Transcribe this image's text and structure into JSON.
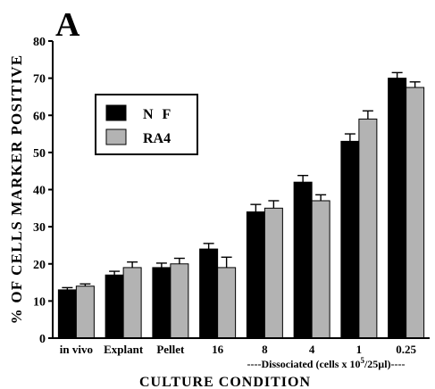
{
  "panel_label": "A",
  "chart_data": {
    "type": "bar",
    "title": "",
    "xlabel": "CULTURE CONDITION",
    "ylabel": "% OF CELLS MARKER POSITIVE",
    "ylim": [
      0,
      80
    ],
    "yticks": [
      0,
      10,
      20,
      30,
      40,
      50,
      60,
      70,
      80
    ],
    "categories": [
      "in vivo",
      "Explant",
      "Pellet",
      "16",
      "8",
      "4",
      "1",
      "0.25"
    ],
    "group_label": {
      "prefix": "----Dissociated  (cells  x  10",
      "superscript": "5",
      "suffix": "/25µl)----"
    },
    "series": [
      {
        "name": "N F",
        "color": "#000000",
        "values": [
          13,
          17,
          19,
          24,
          34,
          42,
          53,
          70
        ],
        "errors": [
          0.6,
          1.0,
          1.2,
          1.5,
          2.0,
          1.8,
          2.0,
          1.5
        ]
      },
      {
        "name": "RA4",
        "color": "#b3b3b3",
        "values": [
          14,
          19,
          20,
          19,
          35,
          37,
          59,
          67.5
        ],
        "errors": [
          0.6,
          1.5,
          1.5,
          2.8,
          2.0,
          1.6,
          2.2,
          1.5
        ]
      }
    ],
    "legend_position": "upper-left",
    "grid": false
  }
}
